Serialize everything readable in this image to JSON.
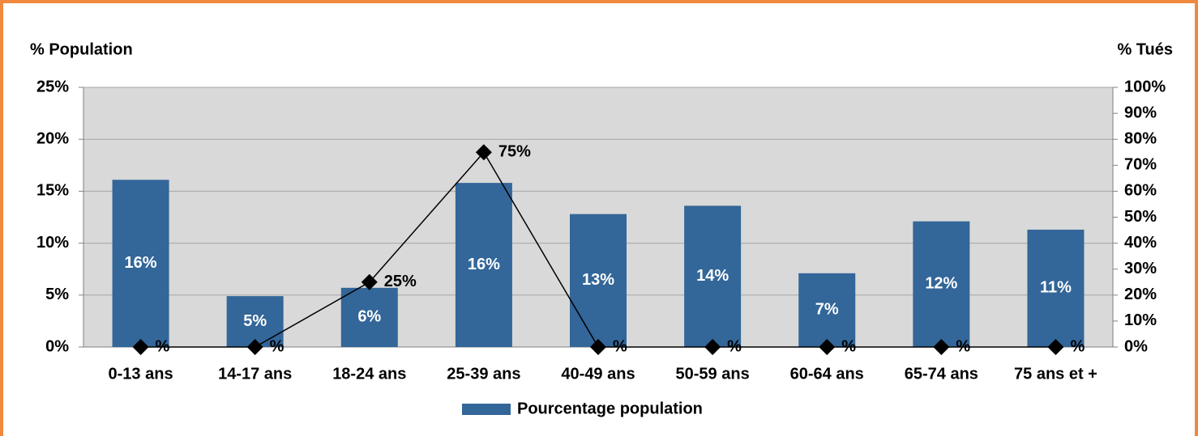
{
  "chart_data": {
    "type": "bar",
    "categories": [
      "0-13 ans",
      "14-17 ans",
      "18-24 ans",
      "25-39 ans",
      "40-49 ans",
      "50-59 ans",
      "60-64 ans",
      "65-74 ans",
      "75 ans et +"
    ],
    "ylabel": "% Population",
    "y2label": "% Tués",
    "ylim": [
      0,
      25
    ],
    "yticks": [
      {
        "value": 0,
        "label": "0%"
      },
      {
        "value": 5,
        "label": "5%"
      },
      {
        "value": 10,
        "label": "10%"
      },
      {
        "value": 15,
        "label": "15%"
      },
      {
        "value": 20,
        "label": "20%"
      },
      {
        "value": 25,
        "label": "25%"
      }
    ],
    "y2lim": [
      0,
      100
    ],
    "y2ticks": [
      {
        "value": 0,
        "label": "0%"
      },
      {
        "value": 10,
        "label": "10%"
      },
      {
        "value": 20,
        "label": "20%"
      },
      {
        "value": 30,
        "label": "30%"
      },
      {
        "value": 40,
        "label": "40%"
      },
      {
        "value": 50,
        "label": "50%"
      },
      {
        "value": 60,
        "label": "60%"
      },
      {
        "value": 70,
        "label": "70%"
      },
      {
        "value": 80,
        "label": "80%"
      },
      {
        "value": 90,
        "label": "90%"
      },
      {
        "value": 100,
        "label": "100%"
      }
    ],
    "grid": true,
    "legend": "bottom",
    "series": [
      {
        "name": "Pourcentage population",
        "type": "bar",
        "color": "#336699",
        "values": [
          16.1,
          4.9,
          5.7,
          15.8,
          12.8,
          13.6,
          7.1,
          12.1,
          11.3
        ],
        "value_labels": [
          "16%",
          "5%",
          "6%",
          "16%",
          "13%",
          "14%",
          "7%",
          "12%",
          "11%"
        ]
      },
      {
        "type": "line",
        "axis": "y2",
        "color": "#000000",
        "values": [
          0,
          0,
          25,
          75,
          0,
          0,
          0,
          0,
          0
        ],
        "value_labels": [
          "%",
          "%",
          "25%",
          "75%",
          "%",
          "%",
          "%",
          "%",
          "%"
        ]
      }
    ]
  }
}
